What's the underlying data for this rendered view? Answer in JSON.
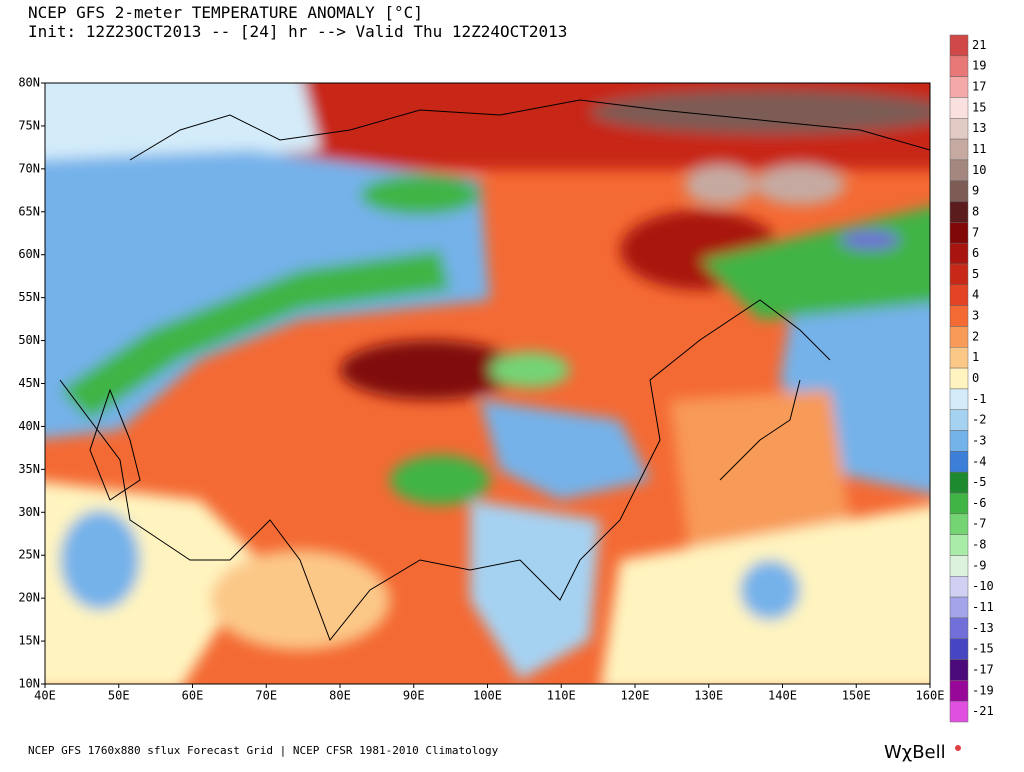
{
  "header": {
    "title": "NCEP GFS 2-meter TEMPERATURE ANOMALY [°C]",
    "subtitle": "Init: 12Z23OCT2013 -- [24] hr --> Valid Thu 12Z24OCT2013"
  },
  "map": {
    "lat_labels": [
      "80N",
      "75N",
      "70N",
      "65N",
      "60N",
      "55N",
      "50N",
      "45N",
      "40N",
      "35N",
      "30N",
      "25N",
      "20N",
      "15N",
      "10N"
    ],
    "lon_labels": [
      "40E",
      "50E",
      "60E",
      "70E",
      "80E",
      "90E",
      "100E",
      "110E",
      "120E",
      "130E",
      "140E",
      "150E",
      "160E"
    ]
  },
  "colorbar": {
    "labels": [
      21,
      19,
      17,
      15,
      13,
      11,
      10,
      9,
      8,
      7,
      6,
      5,
      4,
      3,
      2,
      1,
      0,
      -1,
      -2,
      -3,
      -4,
      -5,
      -6,
      -7,
      -8,
      -9,
      -10,
      -11,
      -13,
      -15,
      -17,
      -19,
      -21
    ],
    "colors": [
      "#d04848",
      "#e87878",
      "#f4a8a8",
      "#fbe0e0",
      "#e2cbc4",
      "#c6aaa2",
      "#a48880",
      "#7c5c54",
      "#5a1c1c",
      "#800808",
      "#a81410",
      "#c82818",
      "#e44424",
      "#f46a34",
      "#f89a58",
      "#fcc888",
      "#fff4c0",
      "#d4ecfa",
      "#a6d2f2",
      "#74b2ea",
      "#3c7ed8",
      "#1e8a30",
      "#40b444",
      "#74d474",
      "#a8eca8",
      "#dcf2dc",
      "#d0d0f2",
      "#a4a4ea",
      "#7070d8",
      "#4646c2",
      "#4a0a7a",
      "#980898",
      "#e050e0"
    ]
  },
  "footer": {
    "source": "NCEP GFS 1760x880 sflux Forecast Grid | NCEP CFSR 1981-2010 Climatology",
    "logo": "WχBell"
  }
}
